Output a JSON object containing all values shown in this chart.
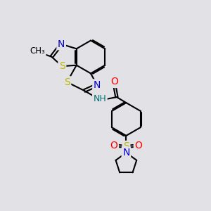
{
  "bg_color": "#e2e2e6",
  "bond_color": "#000000",
  "bond_width": 1.5,
  "atom_colors": {
    "N": "#0000cc",
    "S": "#b8b800",
    "O": "#ff0000",
    "H": "#007070",
    "C": "#000000"
  },
  "font_size": 9
}
